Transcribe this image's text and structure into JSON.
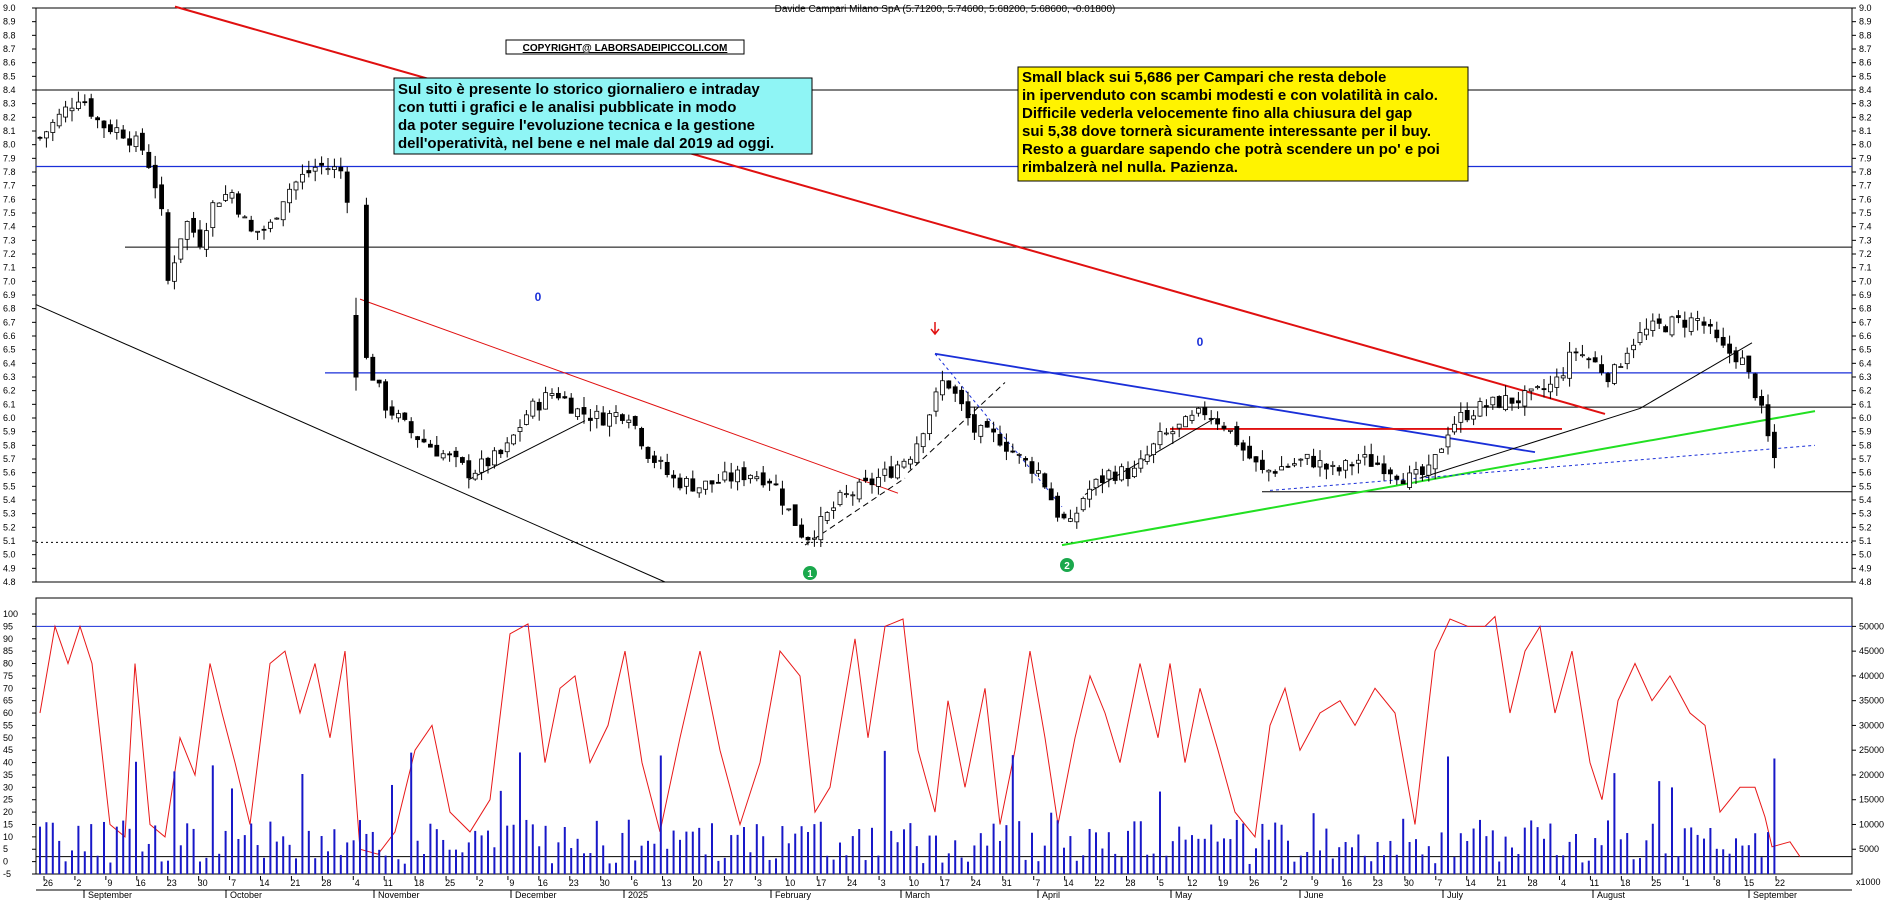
{
  "header": {
    "title": "Davide Campari Milano SpA (5.71200, 5.74600, 5.68200, 5.68600, -0.01800)"
  },
  "copyright": "COPYRIGHT@ LABORSADEIPICCOLI.COM",
  "annotations": {
    "left_box": [
      "Sul sito è presente lo storico giornaliero e intraday",
      "con tutti i grafici e le analisi pubblicate in modo",
      "da poter seguire l'evoluzione tecnica e la gestione",
      "dell'operatività, nel bene e nel male dal 2019 ad oggi."
    ],
    "right_box": [
      "Small black sui 5,686 per Campari che resta debole",
      "in ipervenduto con scambi modesti e con volatilità in calo.",
      "Difficile vederla velocemente fino alla chiusura del gap",
      "sui 5,38 dove tornerà sicuramente interessante per il buy.",
      "Resto a guardare sapendo che potrà scendere un po' e poi",
      "rimbalzerà nel nulla. Pazienza."
    ]
  },
  "markers": {
    "circle_1": "1",
    "circle_2": "2",
    "zero_left": "0",
    "zero_right": "0"
  },
  "colors": {
    "price_line_red": "#e01010",
    "resistance_blue": "#1a2fd8",
    "support_green": "#22e022",
    "oscillator": "#e81818",
    "volume": "#1818c8"
  },
  "chart_data": [
    {
      "type": "candlestick",
      "title": "Davide Campari Milano SpA (5.71200, 5.74600, 5.68200, 5.68600, -0.01800)",
      "ylim": [
        4.8,
        9.0
      ],
      "y_ticks": [
        "9.0",
        "8.9",
        "8.8",
        "8.7",
        "8.6",
        "8.5",
        "8.4",
        "8.3",
        "8.2",
        "8.1",
        "8.0",
        "7.9",
        "7.8",
        "7.7",
        "7.6",
        "7.5",
        "7.4",
        "7.3",
        "7.2",
        "7.1",
        "7.0",
        "6.9",
        "6.8",
        "6.7",
        "6.6",
        "6.5",
        "6.4",
        "6.3",
        "6.2",
        "6.1",
        "6.0",
        "5.9",
        "5.8",
        "5.7",
        "5.6",
        "5.5",
        "5.4",
        "5.3",
        "5.2",
        "5.1",
        "5.0",
        "4.9",
        "4.8"
      ],
      "last": {
        "open": 5.712,
        "high": 5.746,
        "low": 5.682,
        "close": 5.686,
        "change": -0.018
      },
      "horizontal_levels": [
        {
          "value": 8.4,
          "color": "#000000"
        },
        {
          "value": 7.84,
          "color": "#1a2fd8"
        },
        {
          "value": 7.25,
          "color": "#000000"
        },
        {
          "value": 6.33,
          "color": "#1a2fd8"
        },
        {
          "value": 6.08,
          "color": "#000000"
        },
        {
          "value": 5.46,
          "color": "#000000"
        },
        {
          "value": 5.09,
          "color": "#000000",
          "style": "dotted"
        }
      ],
      "key_lows": [
        5.05,
        5.05
      ],
      "trend_lines": [
        "red long-term downtrend",
        "blue descending resistance",
        "green rising support"
      ]
    },
    {
      "type": "line+bar",
      "series": [
        {
          "kind": "oscillator",
          "y_ticks": [
            "100",
            "95",
            "90",
            "85",
            "80",
            "75",
            "70",
            "65",
            "60",
            "55",
            "50",
            "45",
            "40",
            "35",
            "30",
            "25",
            "20",
            "15",
            "10",
            "5",
            "0",
            "-5"
          ]
        },
        {
          "kind": "volume",
          "y_ticks": [
            "50000",
            "45000",
            "40000",
            "35000",
            "30000",
            "25000",
            "20000",
            "15000",
            "10000",
            "5000"
          ],
          "unit_label": "x1000"
        }
      ]
    }
  ],
  "x_axis": {
    "day_labels": [
      "26",
      "2",
      "9",
      "16",
      "23",
      "30",
      "7",
      "14",
      "21",
      "28",
      "4",
      "11",
      "18",
      "25",
      "2",
      "9",
      "16",
      "23",
      "30",
      "6",
      "13",
      "20",
      "27",
      "3",
      "10",
      "17",
      "24",
      "3",
      "10",
      "17",
      "24",
      "31",
      "7",
      "14",
      "22",
      "28",
      "5",
      "12",
      "19",
      "26",
      "2",
      "9",
      "16",
      "23",
      "30",
      "7",
      "14",
      "21",
      "28",
      "4",
      "11",
      "18",
      "25",
      "1",
      "8",
      "15",
      "22"
    ],
    "month_labels": [
      "September",
      "October",
      "November",
      "December",
      "2025",
      "February",
      "March",
      "April",
      "May",
      "June",
      "July",
      "August",
      "September"
    ]
  }
}
